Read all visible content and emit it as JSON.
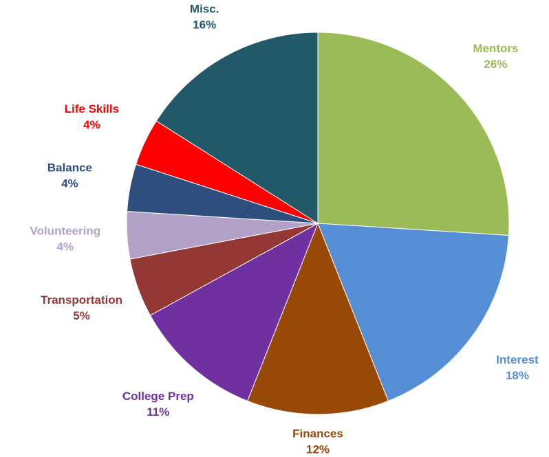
{
  "chart_data": {
    "type": "pie",
    "categories": [
      "Mentors",
      "Interest",
      "Finances",
      "College Prep",
      "Transportation",
      "Volunteering",
      "Balance",
      "Life Skills",
      "Misc."
    ],
    "values": [
      26,
      18,
      12,
      11,
      5,
      4,
      4,
      4,
      16
    ],
    "value_labels": [
      "26%",
      "18%",
      "12%",
      "11%",
      "5%",
      "4%",
      "4%",
      "4%",
      "16%"
    ],
    "colors": [
      "#9bbb59",
      "#558ed5",
      "#984807",
      "#7030a0",
      "#953735",
      "#b3a2c7",
      "#2e4f7e",
      "#ff0000",
      "#215968"
    ]
  }
}
